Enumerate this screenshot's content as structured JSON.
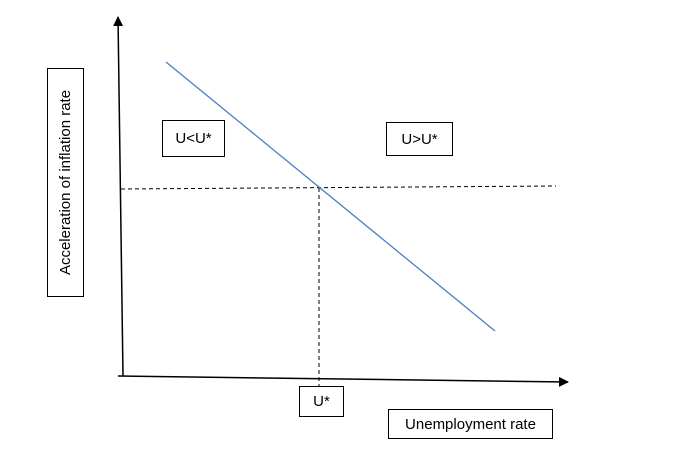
{
  "diagram": {
    "y_axis_label": "Acceleration of inflation rate",
    "x_axis_label": "Unemployment rate",
    "region_left_label": "U<U*",
    "region_right_label": "U>U*",
    "natural_rate_label": "U*",
    "colors": {
      "curve": "#4a7ec4",
      "axes": "#000000",
      "reference_lines": "#000000"
    }
  }
}
